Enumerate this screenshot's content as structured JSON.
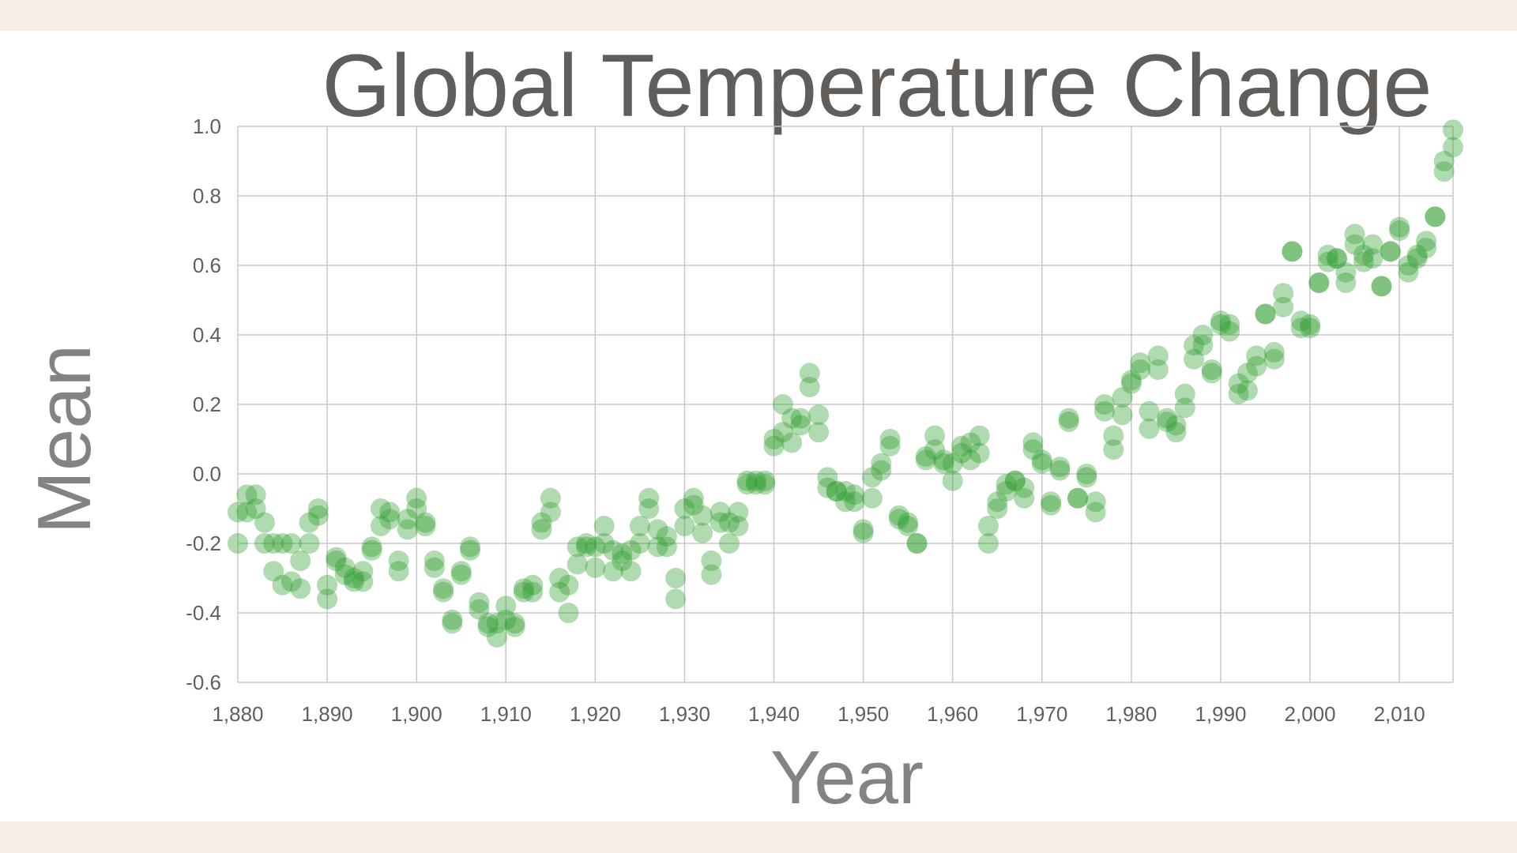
{
  "colors": {
    "point": "#2f9e2f",
    "grid": "#c8c8c8",
    "text": "#615d5a",
    "background": "#ffffff",
    "frame": "#f6efe5"
  },
  "chart_data": {
    "type": "scatter",
    "title": "Global Temperature Change",
    "xlabel": "Year",
    "ylabel": "Mean",
    "xlim": [
      1880,
      2016
    ],
    "ylim": [
      -0.6,
      1.0
    ],
    "xticks": [
      1880,
      1890,
      1900,
      1910,
      1920,
      1930,
      1940,
      1950,
      1960,
      1970,
      1980,
      1990,
      2000,
      2010
    ],
    "xtick_labels": [
      "1,880",
      "1,890",
      "1,900",
      "1,910",
      "1,920",
      "1,930",
      "1,940",
      "1,950",
      "1,960",
      "1,970",
      "1,980",
      "1,990",
      "2,000",
      "2,010"
    ],
    "yticks": [
      1.0,
      0.8,
      0.6,
      0.4,
      0.2,
      0.0,
      -0.2,
      -0.4,
      -0.6
    ],
    "ytick_labels": [
      "1.0",
      "0.8",
      "0.6",
      "0.4",
      "0.2",
      "0.0",
      "-0.2",
      "-0.4",
      "-0.6"
    ],
    "grid": true,
    "legend": "none",
    "points": [
      [
        1880,
        -0.11
      ],
      [
        1880,
        -0.2
      ],
      [
        1881,
        -0.06
      ],
      [
        1881,
        -0.11
      ],
      [
        1882,
        -0.06
      ],
      [
        1882,
        -0.1
      ],
      [
        1883,
        -0.14
      ],
      [
        1883,
        -0.2
      ],
      [
        1884,
        -0.2
      ],
      [
        1884,
        -0.28
      ],
      [
        1885,
        -0.2
      ],
      [
        1885,
        -0.32
      ],
      [
        1886,
        -0.2
      ],
      [
        1886,
        -0.31
      ],
      [
        1887,
        -0.33
      ],
      [
        1887,
        -0.25
      ],
      [
        1888,
        -0.14
      ],
      [
        1888,
        -0.2
      ],
      [
        1889,
        -0.12
      ],
      [
        1889,
        -0.1
      ],
      [
        1890,
        -0.36
      ],
      [
        1890,
        -0.32
      ],
      [
        1891,
        -0.24
      ],
      [
        1891,
        -0.25
      ],
      [
        1892,
        -0.27
      ],
      [
        1892,
        -0.29
      ],
      [
        1893,
        -0.31
      ],
      [
        1893,
        -0.3
      ],
      [
        1894,
        -0.31
      ],
      [
        1894,
        -0.28
      ],
      [
        1895,
        -0.22
      ],
      [
        1895,
        -0.21
      ],
      [
        1896,
        -0.15
      ],
      [
        1896,
        -0.1
      ],
      [
        1897,
        -0.13
      ],
      [
        1897,
        -0.11
      ],
      [
        1898,
        -0.28
      ],
      [
        1898,
        -0.25
      ],
      [
        1899,
        -0.16
      ],
      [
        1899,
        -0.13
      ],
      [
        1900,
        -0.07
      ],
      [
        1900,
        -0.1
      ],
      [
        1901,
        -0.14
      ],
      [
        1901,
        -0.15
      ],
      [
        1902,
        -0.27
      ],
      [
        1902,
        -0.25
      ],
      [
        1903,
        -0.34
      ],
      [
        1903,
        -0.33
      ],
      [
        1904,
        -0.42
      ],
      [
        1904,
        -0.43
      ],
      [
        1905,
        -0.29
      ],
      [
        1905,
        -0.28
      ],
      [
        1906,
        -0.22
      ],
      [
        1906,
        -0.21
      ],
      [
        1907,
        -0.39
      ],
      [
        1907,
        -0.37
      ],
      [
        1908,
        -0.43
      ],
      [
        1908,
        -0.44
      ],
      [
        1909,
        -0.47
      ],
      [
        1909,
        -0.43
      ],
      [
        1910,
        -0.42
      ],
      [
        1910,
        -0.38
      ],
      [
        1911,
        -0.43
      ],
      [
        1911,
        -0.44
      ],
      [
        1912,
        -0.34
      ],
      [
        1912,
        -0.33
      ],
      [
        1913,
        -0.34
      ],
      [
        1913,
        -0.32
      ],
      [
        1914,
        -0.16
      ],
      [
        1914,
        -0.14
      ],
      [
        1915,
        -0.07
      ],
      [
        1915,
        -0.11
      ],
      [
        1916,
        -0.34
      ],
      [
        1916,
        -0.3
      ],
      [
        1917,
        -0.4
      ],
      [
        1917,
        -0.32
      ],
      [
        1918,
        -0.26
      ],
      [
        1918,
        -0.21
      ],
      [
        1919,
        -0.21
      ],
      [
        1919,
        -0.2
      ],
      [
        1920,
        -0.27
      ],
      [
        1920,
        -0.21
      ],
      [
        1921,
        -0.15
      ],
      [
        1921,
        -0.2
      ],
      [
        1922,
        -0.28
      ],
      [
        1922,
        -0.22
      ],
      [
        1923,
        -0.23
      ],
      [
        1923,
        -0.25
      ],
      [
        1924,
        -0.22
      ],
      [
        1924,
        -0.28
      ],
      [
        1925,
        -0.15
      ],
      [
        1925,
        -0.2
      ],
      [
        1926,
        -0.07
      ],
      [
        1926,
        -0.1
      ],
      [
        1927,
        -0.16
      ],
      [
        1927,
        -0.21
      ],
      [
        1928,
        -0.18
      ],
      [
        1928,
        -0.21
      ],
      [
        1929,
        -0.36
      ],
      [
        1929,
        -0.3
      ],
      [
        1930,
        -0.15
      ],
      [
        1930,
        -0.1
      ],
      [
        1931,
        -0.09
      ],
      [
        1931,
        -0.07
      ],
      [
        1932,
        -0.17
      ],
      [
        1932,
        -0.12
      ],
      [
        1933,
        -0.29
      ],
      [
        1933,
        -0.25
      ],
      [
        1934,
        -0.14
      ],
      [
        1934,
        -0.11
      ],
      [
        1935,
        -0.2
      ],
      [
        1935,
        -0.14
      ],
      [
        1936,
        -0.15
      ],
      [
        1936,
        -0.11
      ],
      [
        1937,
        -0.02
      ],
      [
        1937,
        -0.03
      ],
      [
        1938,
        -0.03
      ],
      [
        1938,
        -0.02
      ],
      [
        1939,
        -0.02
      ],
      [
        1939,
        -0.03
      ],
      [
        1940,
        0.08
      ],
      [
        1940,
        0.1
      ],
      [
        1941,
        0.12
      ],
      [
        1941,
        0.2
      ],
      [
        1942,
        0.09
      ],
      [
        1942,
        0.16
      ],
      [
        1943,
        0.14
      ],
      [
        1943,
        0.16
      ],
      [
        1944,
        0.29
      ],
      [
        1944,
        0.25
      ],
      [
        1945,
        0.17
      ],
      [
        1945,
        0.12
      ],
      [
        1946,
        -0.01
      ],
      [
        1946,
        -0.04
      ],
      [
        1947,
        -0.05
      ],
      [
        1947,
        -0.05
      ],
      [
        1948,
        -0.05
      ],
      [
        1948,
        -0.08
      ],
      [
        1949,
        -0.06
      ],
      [
        1949,
        -0.08
      ],
      [
        1950,
        -0.17
      ],
      [
        1950,
        -0.16
      ],
      [
        1951,
        -0.07
      ],
      [
        1951,
        -0.01
      ],
      [
        1952,
        0.01
      ],
      [
        1952,
        0.03
      ],
      [
        1953,
        0.08
      ],
      [
        1953,
        0.1
      ],
      [
        1954,
        -0.12
      ],
      [
        1954,
        -0.13
      ],
      [
        1955,
        -0.14
      ],
      [
        1955,
        -0.15
      ],
      [
        1956,
        -0.2
      ],
      [
        1956,
        -0.2
      ],
      [
        1957,
        0.04
      ],
      [
        1957,
        0.05
      ],
      [
        1958,
        0.11
      ],
      [
        1958,
        0.07
      ],
      [
        1959,
        0.04
      ],
      [
        1959,
        0.03
      ],
      [
        1960,
        -0.02
      ],
      [
        1960,
        0.03
      ],
      [
        1961,
        0.06
      ],
      [
        1961,
        0.08
      ],
      [
        1962,
        0.04
      ],
      [
        1962,
        0.09
      ],
      [
        1963,
        0.06
      ],
      [
        1963,
        0.11
      ],
      [
        1964,
        -0.15
      ],
      [
        1964,
        -0.2
      ],
      [
        1965,
        -0.1
      ],
      [
        1965,
        -0.08
      ],
      [
        1966,
        -0.03
      ],
      [
        1966,
        -0.05
      ],
      [
        1967,
        -0.02
      ],
      [
        1967,
        -0.02
      ],
      [
        1968,
        -0.07
      ],
      [
        1968,
        -0.04
      ],
      [
        1969,
        0.07
      ],
      [
        1969,
        0.09
      ],
      [
        1970,
        0.03
      ],
      [
        1970,
        0.04
      ],
      [
        1971,
        -0.08
      ],
      [
        1971,
        -0.09
      ],
      [
        1972,
        0.01
      ],
      [
        1972,
        0.02
      ],
      [
        1973,
        0.15
      ],
      [
        1973,
        0.16
      ],
      [
        1974,
        -0.07
      ],
      [
        1974,
        -0.07
      ],
      [
        1975,
        -0.01
      ],
      [
        1975,
        0.0
      ],
      [
        1976,
        -0.11
      ],
      [
        1976,
        -0.08
      ],
      [
        1977,
        0.18
      ],
      [
        1977,
        0.2
      ],
      [
        1978,
        0.07
      ],
      [
        1978,
        0.11
      ],
      [
        1979,
        0.17
      ],
      [
        1979,
        0.22
      ],
      [
        1980,
        0.26
      ],
      [
        1980,
        0.27
      ],
      [
        1981,
        0.32
      ],
      [
        1981,
        0.3
      ],
      [
        1982,
        0.13
      ],
      [
        1982,
        0.18
      ],
      [
        1983,
        0.34
      ],
      [
        1983,
        0.3
      ],
      [
        1984,
        0.16
      ],
      [
        1984,
        0.15
      ],
      [
        1985,
        0.12
      ],
      [
        1985,
        0.14
      ],
      [
        1986,
        0.19
      ],
      [
        1986,
        0.23
      ],
      [
        1987,
        0.33
      ],
      [
        1987,
        0.37
      ],
      [
        1988,
        0.4
      ],
      [
        1988,
        0.37
      ],
      [
        1989,
        0.29
      ],
      [
        1989,
        0.3
      ],
      [
        1990,
        0.44
      ],
      [
        1990,
        0.43
      ],
      [
        1991,
        0.41
      ],
      [
        1991,
        0.43
      ],
      [
        1992,
        0.23
      ],
      [
        1992,
        0.26
      ],
      [
        1993,
        0.24
      ],
      [
        1993,
        0.29
      ],
      [
        1994,
        0.31
      ],
      [
        1994,
        0.34
      ],
      [
        1995,
        0.46
      ],
      [
        1995,
        0.46
      ],
      [
        1996,
        0.33
      ],
      [
        1996,
        0.35
      ],
      [
        1997,
        0.48
      ],
      [
        1997,
        0.52
      ],
      [
        1998,
        0.64
      ],
      [
        1998,
        0.64
      ],
      [
        1999,
        0.44
      ],
      [
        1999,
        0.42
      ],
      [
        2000,
        0.42
      ],
      [
        2000,
        0.43
      ],
      [
        2001,
        0.55
      ],
      [
        2001,
        0.55
      ],
      [
        2002,
        0.63
      ],
      [
        2002,
        0.61
      ],
      [
        2003,
        0.62
      ],
      [
        2003,
        0.62
      ],
      [
        2004,
        0.55
      ],
      [
        2004,
        0.58
      ],
      [
        2005,
        0.69
      ],
      [
        2005,
        0.66
      ],
      [
        2006,
        0.63
      ],
      [
        2006,
        0.61
      ],
      [
        2007,
        0.66
      ],
      [
        2007,
        0.62
      ],
      [
        2008,
        0.54
      ],
      [
        2008,
        0.54
      ],
      [
        2009,
        0.64
      ],
      [
        2009,
        0.64
      ],
      [
        2010,
        0.71
      ],
      [
        2010,
        0.7
      ],
      [
        2011,
        0.6
      ],
      [
        2011,
        0.58
      ],
      [
        2012,
        0.63
      ],
      [
        2012,
        0.62
      ],
      [
        2013,
        0.67
      ],
      [
        2013,
        0.65
      ],
      [
        2014,
        0.74
      ],
      [
        2014,
        0.74
      ],
      [
        2015,
        0.87
      ],
      [
        2015,
        0.9
      ],
      [
        2016,
        0.99
      ],
      [
        2016,
        0.94
      ]
    ]
  }
}
